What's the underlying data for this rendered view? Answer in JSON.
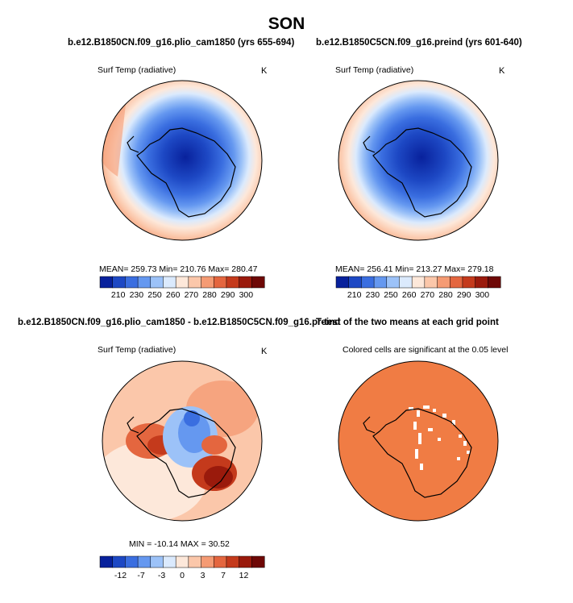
{
  "page": {
    "title": "SON"
  },
  "panels": [
    {
      "title": "b.e12.B1850CN.f09_g16.plio_cam1850 (yrs 655-694)",
      "variable": "Surf Temp (radiative)",
      "units": "K",
      "stats": "MEAN= 259.73  Min= 210.76  Max= 280.47"
    },
    {
      "title": "b.e12.B1850C5CN.f09_g16.preind (yrs 601-640)",
      "variable": "Surf Temp (radiative)",
      "units": "K",
      "stats": "MEAN= 256.41  Min= 213.27  Max= 279.18"
    },
    {
      "title": "b.e12.B1850CN.f09_g16.plio_cam1850 - b.e12.B1850C5CN.f09_g16.preind",
      "variable": "Surf Temp (radiative)",
      "units": "K",
      "stats": "MIN = -10.14  MAX =   30.52"
    },
    {
      "title": "T-test of the two means at each grid point",
      "variable": "Colored cells are significant at the 0.05 level"
    }
  ],
  "colorbars": {
    "absolute": {
      "colors": [
        "#08219c",
        "#1d48c4",
        "#3a6ee0",
        "#6598f0",
        "#9cc2f8",
        "#dbeafd",
        "#fde8da",
        "#fbc7aa",
        "#f59b74",
        "#e4663f",
        "#c43a1c",
        "#9a1a0c",
        "#6e0806"
      ],
      "labels": [
        "210",
        "230",
        "250",
        "260",
        "270",
        "280",
        "290",
        "300"
      ]
    },
    "difference": {
      "colors": [
        "#08219c",
        "#1d48c4",
        "#3a6ee0",
        "#6598f0",
        "#9cc2f8",
        "#dbeafd",
        "#fde8da",
        "#fbc7aa",
        "#f59b74",
        "#e4663f",
        "#c43a1c",
        "#9a1a0c",
        "#6e0806"
      ],
      "labels": [
        "-12",
        "-7",
        "-3",
        "0",
        "3",
        "7",
        "12"
      ]
    }
  },
  "colors": {
    "ttest_fill": "#f07c44"
  }
}
